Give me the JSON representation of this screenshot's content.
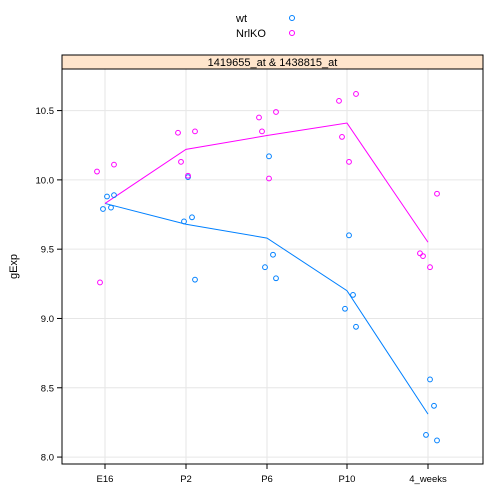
{
  "chart_data": {
    "type": "scatter",
    "strip_title": "1419655_at & 1438815_at",
    "xlabel": "",
    "ylabel": "gExp",
    "categories": [
      "E16",
      "P2",
      "P6",
      "P10",
      "4_weeks"
    ],
    "ylim": [
      7.95,
      10.8
    ],
    "yticks": [
      8.0,
      8.5,
      9.0,
      9.5,
      10.0,
      10.5
    ],
    "grid": true,
    "legend_position": "top-center",
    "series": [
      {
        "name": "wt",
        "color": "#0080FF",
        "points": [
          {
            "x": "E16",
            "y": 9.88
          },
          {
            "x": "E16",
            "y": 9.8
          },
          {
            "x": "E16",
            "y": 9.79
          },
          {
            "x": "E16",
            "y": 9.89
          },
          {
            "x": "P2",
            "y": 10.02
          },
          {
            "x": "P2",
            "y": 9.73
          },
          {
            "x": "P2",
            "y": 9.7
          },
          {
            "x": "P2",
            "y": 9.28
          },
          {
            "x": "P6",
            "y": 10.17
          },
          {
            "x": "P6",
            "y": 9.46
          },
          {
            "x": "P6",
            "y": 9.37
          },
          {
            "x": "P6",
            "y": 9.29
          },
          {
            "x": "P10",
            "y": 9.6
          },
          {
            "x": "P10",
            "y": 9.17
          },
          {
            "x": "P10",
            "y": 9.07
          },
          {
            "x": "P10",
            "y": 8.94
          },
          {
            "x": "4_weeks",
            "y": 8.56
          },
          {
            "x": "4_weeks",
            "y": 8.37
          },
          {
            "x": "4_weeks",
            "y": 8.16
          },
          {
            "x": "4_weeks",
            "y": 8.12
          }
        ],
        "trend": [
          9.83,
          9.68,
          9.58,
          9.2,
          8.31
        ]
      },
      {
        "name": "NrlKO",
        "color": "#FF00FF",
        "points": [
          {
            "x": "E16",
            "y": 10.11
          },
          {
            "x": "E16",
            "y": 10.06
          },
          {
            "x": "E16",
            "y": 9.26
          },
          {
            "x": "P2",
            "y": 10.35
          },
          {
            "x": "P2",
            "y": 10.34
          },
          {
            "x": "P2",
            "y": 10.13
          },
          {
            "x": "P2",
            "y": 10.03
          },
          {
            "x": "P6",
            "y": 10.49
          },
          {
            "x": "P6",
            "y": 10.45
          },
          {
            "x": "P6",
            "y": 10.35
          },
          {
            "x": "P6",
            "y": 10.01
          },
          {
            "x": "P10",
            "y": 10.62
          },
          {
            "x": "P10",
            "y": 10.57
          },
          {
            "x": "P10",
            "y": 10.31
          },
          {
            "x": "P10",
            "y": 10.13
          },
          {
            "x": "4_weeks",
            "y": 9.9
          },
          {
            "x": "4_weeks",
            "y": 9.47
          },
          {
            "x": "4_weeks",
            "y": 9.45
          },
          {
            "x": "4_weeks",
            "y": 9.37
          }
        ],
        "trend": [
          9.83,
          10.22,
          10.32,
          10.41,
          9.55
        ]
      }
    ]
  },
  "colors": {
    "strip_background": "#FFE5CC",
    "grid": "#E6E6E6",
    "frame": "#000000"
  }
}
